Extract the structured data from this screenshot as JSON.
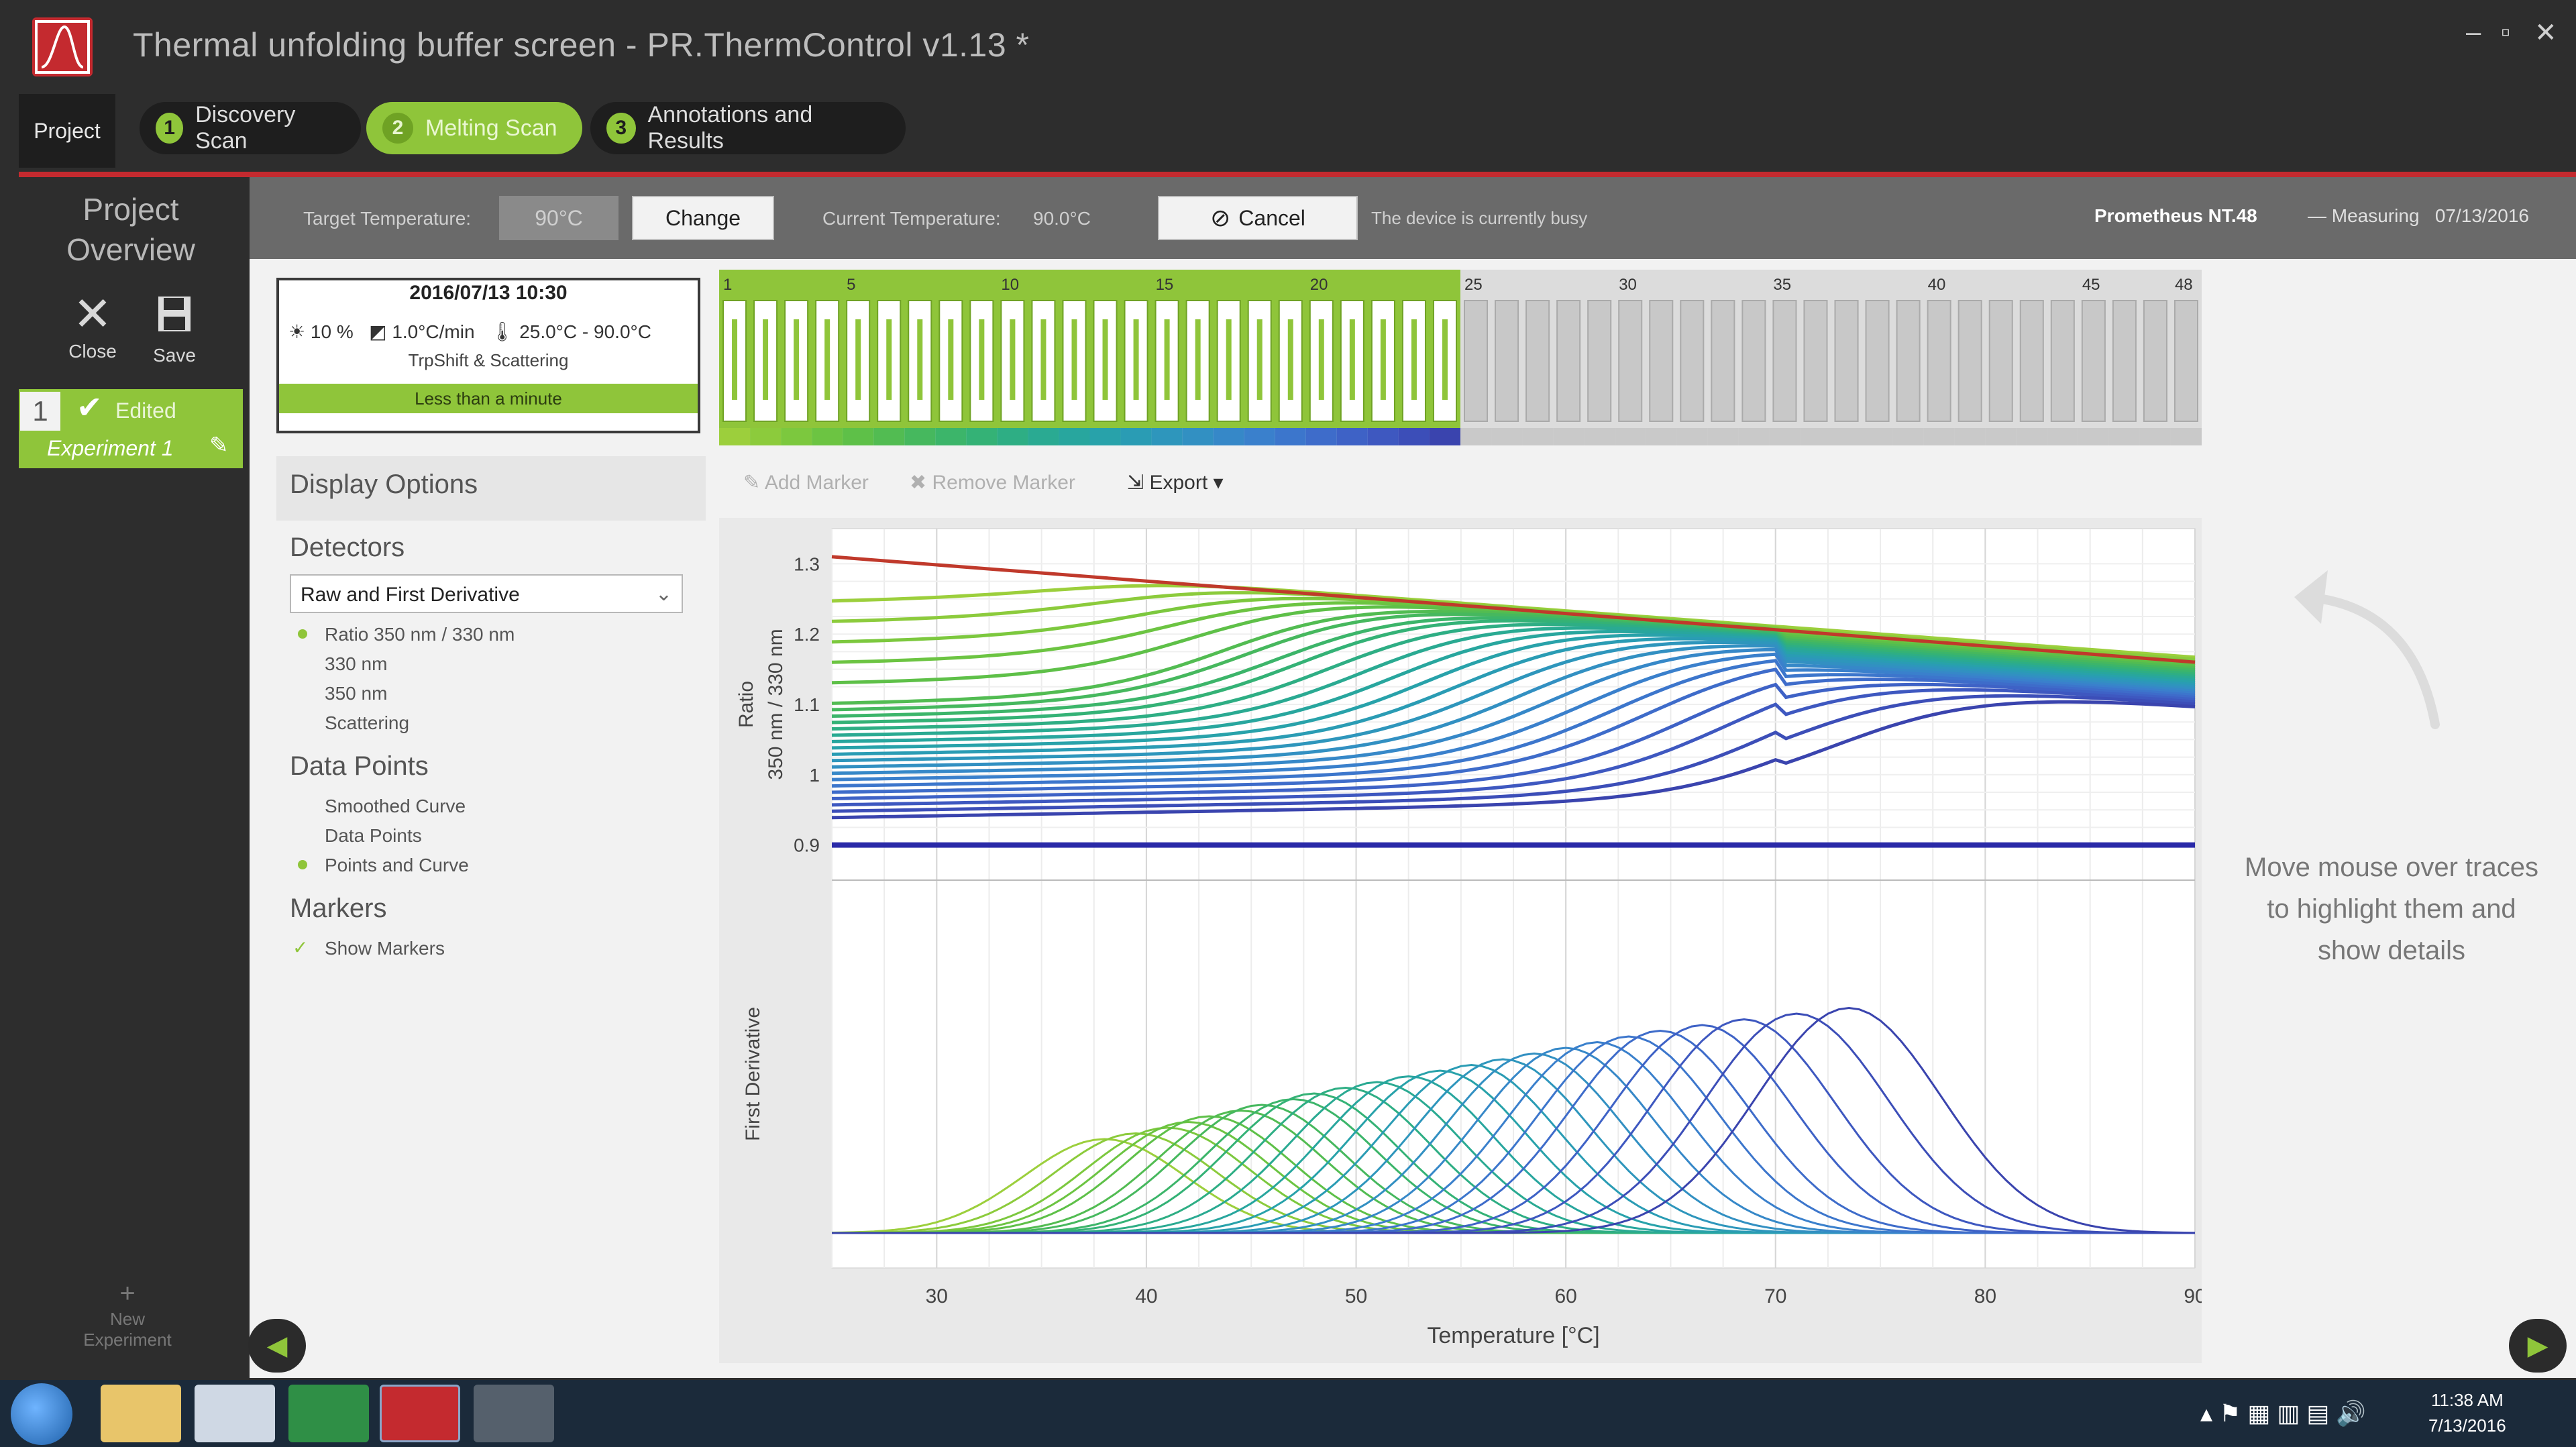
{
  "window": {
    "title": "Thermal unfolding buffer screen - PR.ThermControl v1.13 *",
    "minimize": "–",
    "restore": "▫",
    "close": "✕"
  },
  "tabs": {
    "project": "Project",
    "items": [
      {
        "num": "1",
        "label": "Discovery Scan"
      },
      {
        "num": "2",
        "label": "Melting Scan"
      },
      {
        "num": "3",
        "label": "Annotations and Results"
      }
    ],
    "active_index": 1
  },
  "sidebar": {
    "project_overview_line1": "Project",
    "project_overview_line2": "Overview",
    "close_label": "Close",
    "save_label": "Save",
    "edited_label": "Edited",
    "experiment_label": "Experiment 1",
    "new_experiment_line1": "New",
    "new_experiment_line2": "Experiment"
  },
  "toolbar": {
    "target_temp_label": "Target Temperature:",
    "target_temp_value": "90°C",
    "change_label": "Change",
    "current_temp_label": "Current Temperature:",
    "current_temp_value": "90.0°C",
    "cancel_label": "Cancel",
    "busy_text": "The device is currently busy",
    "device": "Prometheus NT.48",
    "status": "— Measuring",
    "date": "07/13/2016"
  },
  "card": {
    "datetime": "2016/07/13 10:30",
    "excitation": "10 %",
    "rate": "1.0°C/min",
    "range": "25.0°C - 90.0°C",
    "mode": "TrpShift & Scattering",
    "status": "Less than a minute"
  },
  "capillaries": {
    "total": 48,
    "active": 24,
    "tick_labels": [
      "1",
      "5",
      "10",
      "15",
      "20",
      "25",
      "30",
      "35",
      "40",
      "45",
      "48"
    ]
  },
  "display_options": {
    "title": "Display Options",
    "detectors_heading": "Detectors",
    "detector_selected": "Raw and First Derivative",
    "detector_options": [
      "Ratio 350 nm / 330 nm",
      "330 nm",
      "350 nm",
      "Scattering"
    ],
    "detector_active": 0,
    "data_points_heading": "Data Points",
    "data_point_options": [
      "Smoothed Curve",
      "Data Points",
      "Points and Curve"
    ],
    "data_point_active": 2,
    "markers_heading": "Markers",
    "show_markers": "Show Markers"
  },
  "chart_toolbar": {
    "add_marker": "Add Marker",
    "remove_marker": "Remove Marker",
    "export": "Export"
  },
  "chart_data": {
    "type": "line",
    "x_range": [
      25,
      90
    ],
    "x_ticks": [
      30,
      40,
      50,
      60,
      70,
      80,
      90
    ],
    "xlabel": "Temperature [°C]",
    "top": {
      "ylabel_line1": "Ratio",
      "ylabel_line2": "350 nm / 330 nm",
      "y_ticks": [
        "1.3",
        "1.2",
        "1.1",
        "1",
        "0.9"
      ],
      "y_tick_values": [
        1.3,
        1.2,
        1.1,
        1.0,
        0.9
      ]
    },
    "bottom": {
      "ylabel": "First Derivative"
    },
    "series_count": 24,
    "melting_points": [
      38,
      39.5,
      41,
      42,
      43,
      44.5,
      45.5,
      47,
      48,
      49.5,
      51,
      52.5,
      54,
      55.5,
      57,
      58.5,
      60,
      61.5,
      63,
      64.5,
      66.5,
      68.5,
      71,
      73.5
    ],
    "colors": [
      "#9ccf3c",
      "#8ccb3c",
      "#7cc83e",
      "#6cc442",
      "#5ec048",
      "#52bc52",
      "#46b85e",
      "#3cb56a",
      "#34b276",
      "#2eae84",
      "#2aaa92",
      "#28a69e",
      "#28a2aa",
      "#2a9cb4",
      "#2e96bc",
      "#3290c2",
      "#3688c8",
      "#3a80cc",
      "#3c76cc",
      "#3e6cca",
      "#3e62c6",
      "#3e58c0",
      "#3c4eb8",
      "#3a44ae"
    ]
  },
  "hint": {
    "line1": "Move mouse over traces",
    "line2": "to highlight them and",
    "line3": "show details"
  },
  "taskbar": {
    "time": "11:38 AM",
    "date": "7/13/2016"
  }
}
